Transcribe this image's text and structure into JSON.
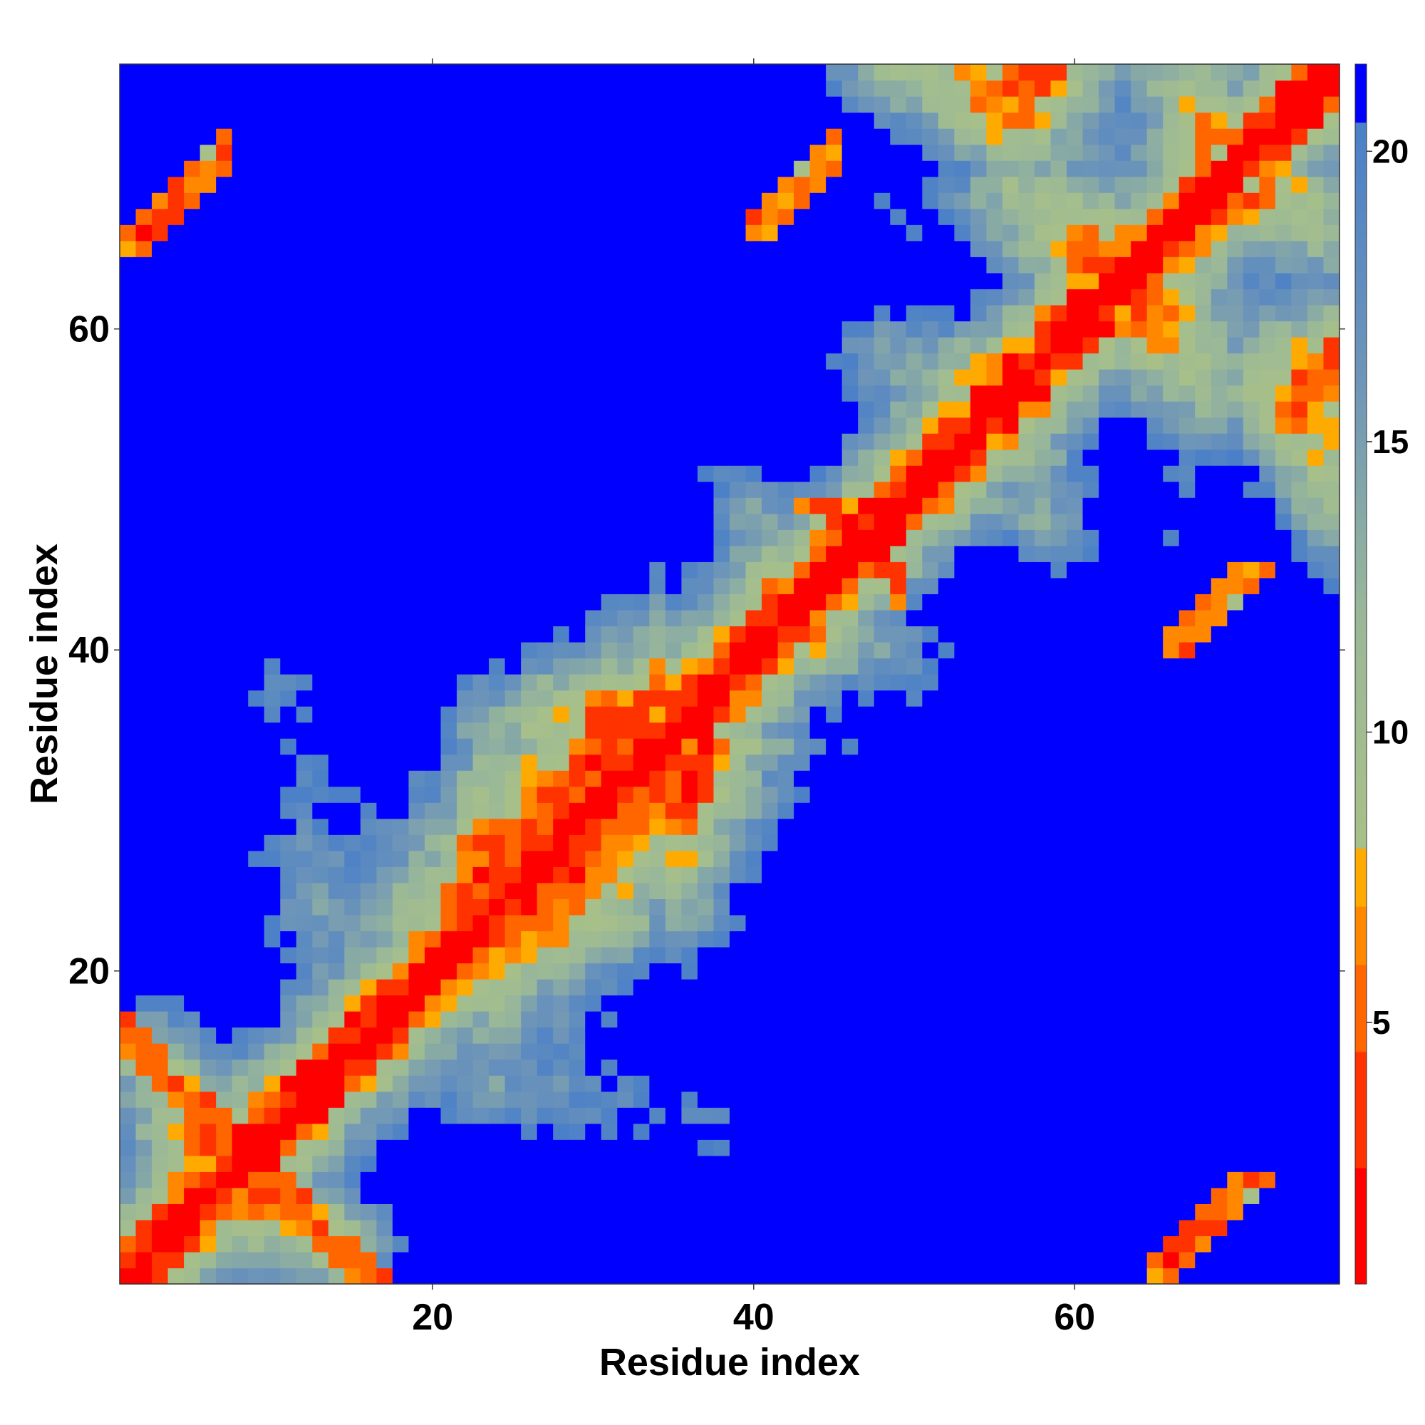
{
  "chart_data": {
    "type": "heatmap",
    "title": "",
    "xlabel": "Residue index",
    "ylabel": "Residue index",
    "n_residues": 76,
    "xlim": [
      1,
      76
    ],
    "ylim": [
      1,
      76
    ],
    "x_ticks": [
      20,
      40,
      60
    ],
    "y_ticks": [
      20,
      40,
      60
    ],
    "x_tick_labels": [
      "20",
      "40",
      "60"
    ],
    "y_tick_labels": [
      "20",
      "40",
      "60"
    ],
    "colorbar": {
      "range": [
        0.5,
        21.5
      ],
      "ticks": [
        5,
        10,
        15,
        20
      ],
      "tick_labels": [
        "5",
        "10",
        "15",
        "20"
      ],
      "discrete_stops": [
        {
          "max": 2.5,
          "color": "#ff0000"
        },
        {
          "max": 4.5,
          "color": "#ff3300"
        },
        {
          "max": 6.0,
          "color": "#ff6600"
        },
        {
          "max": 7.0,
          "color": "#ff8800"
        },
        {
          "max": 8.0,
          "color": "#ffaa00"
        }
      ],
      "gradient": [
        {
          "value": 8.0,
          "color": "#a8c088"
        },
        {
          "value": 12.0,
          "color": "#9ab898"
        },
        {
          "value": 16.0,
          "color": "#6f96b8"
        },
        {
          "value": 20.5,
          "color": "#4b80c8"
        },
        {
          "value": 20.5,
          "color": "#0000ff"
        }
      ]
    },
    "matrix_description_values": {
      "diagonal_value": 1.0,
      "cap_value": 21.0
    },
    "secondary_structure": {
      "helices": [
        [
          23,
          34
        ]
      ],
      "beta_pairs": [
        {
          "a": [
            1,
            7
          ],
          "b": [
            10,
            17
          ],
          "anti": true
        },
        {
          "a": [
            1,
            7
          ],
          "b": [
            65,
            72
          ],
          "anti": false
        },
        {
          "a": [
            40,
            45
          ],
          "b": [
            48,
            49
          ],
          "anti": true
        },
        {
          "a": [
            40,
            45
          ],
          "b": [
            66,
            72
          ],
          "anti": false
        }
      ]
    }
  }
}
